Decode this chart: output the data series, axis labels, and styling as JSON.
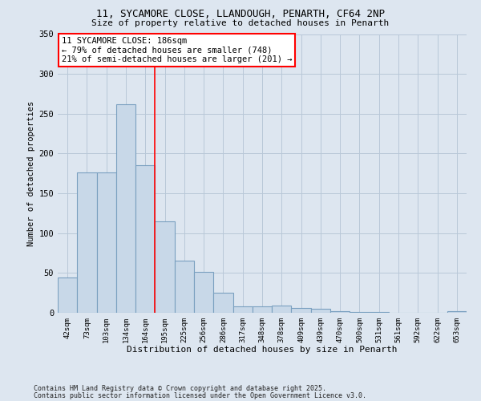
{
  "title_line1": "11, SYCAMORE CLOSE, LLANDOUGH, PENARTH, CF64 2NP",
  "title_line2": "Size of property relative to detached houses in Penarth",
  "xlabel": "Distribution of detached houses by size in Penarth",
  "ylabel": "Number of detached properties",
  "categories": [
    "42sqm",
    "73sqm",
    "103sqm",
    "134sqm",
    "164sqm",
    "195sqm",
    "225sqm",
    "256sqm",
    "286sqm",
    "317sqm",
    "348sqm",
    "378sqm",
    "409sqm",
    "439sqm",
    "470sqm",
    "500sqm",
    "531sqm",
    "561sqm",
    "592sqm",
    "622sqm",
    "653sqm"
  ],
  "values": [
    44,
    176,
    176,
    262,
    185,
    115,
    65,
    51,
    25,
    8,
    8,
    9,
    6,
    5,
    2,
    1,
    1,
    0,
    0,
    0,
    2
  ],
  "bar_color": "#c8d8e8",
  "bar_edge_color": "#7aa0c0",
  "annotation_text": "11 SYCAMORE CLOSE: 186sqm\n← 79% of detached houses are smaller (748)\n21% of semi-detached houses are larger (201) →",
  "annotation_box_color": "white",
  "annotation_box_edge_color": "red",
  "vline_color": "red",
  "grid_color": "#b8c8d8",
  "background_color": "#dde6f0",
  "footer_line1": "Contains HM Land Registry data © Crown copyright and database right 2025.",
  "footer_line2": "Contains public sector information licensed under the Open Government Licence v3.0.",
  "ylim": [
    0,
    350
  ],
  "yticks": [
    0,
    50,
    100,
    150,
    200,
    250,
    300,
    350
  ],
  "vline_x": 4.5
}
